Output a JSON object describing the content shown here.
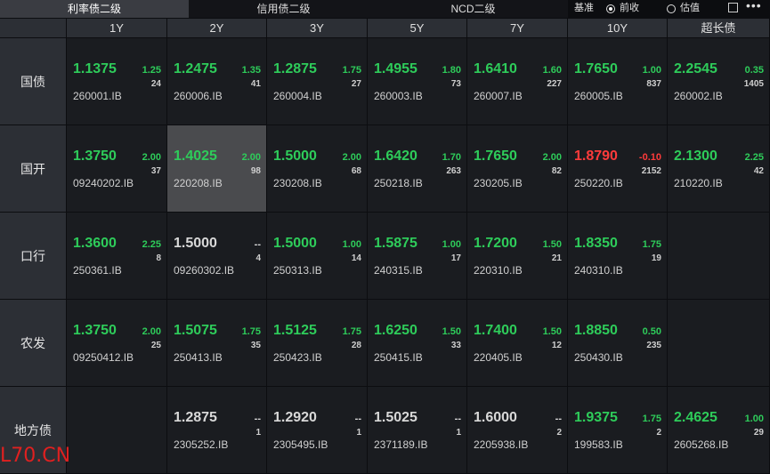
{
  "tabs": [
    "利率债二级",
    "信用债二级",
    "NCD二级"
  ],
  "active_tab": 0,
  "benchmark": {
    "label": "基准",
    "options": [
      "前收",
      "估值"
    ],
    "selected": 0
  },
  "columns": [
    "1Y",
    "2Y",
    "3Y",
    "5Y",
    "7Y",
    "10Y",
    "超长债"
  ],
  "rows": [
    {
      "name": "国债",
      "cells": [
        {
          "price": "1.1375",
          "change": "1.25",
          "count": "24",
          "code": "260001.IB"
        },
        {
          "price": "1.2475",
          "change": "1.35",
          "count": "41",
          "code": "260006.IB"
        },
        {
          "price": "1.2875",
          "change": "1.75",
          "count": "27",
          "code": "260004.IB"
        },
        {
          "price": "1.4955",
          "change": "1.80",
          "count": "73",
          "code": "260003.IB"
        },
        {
          "price": "1.6410",
          "change": "1.60",
          "count": "227",
          "code": "260007.IB"
        },
        {
          "price": "1.7650",
          "change": "1.00",
          "count": "837",
          "code": "260005.IB"
        },
        {
          "price": "2.2545",
          "change": "0.35",
          "count": "1405",
          "code": "260002.IB"
        }
      ]
    },
    {
      "name": "国开",
      "cells": [
        {
          "price": "1.3750",
          "change": "2.00",
          "count": "37",
          "code": "09240202.IB"
        },
        {
          "price": "1.4025",
          "change": "2.00",
          "count": "98",
          "code": "220208.IB",
          "selected": true
        },
        {
          "price": "1.5000",
          "change": "2.00",
          "count": "68",
          "code": "230208.IB"
        },
        {
          "price": "1.6420",
          "change": "1.70",
          "count": "263",
          "code": "250218.IB"
        },
        {
          "price": "1.7650",
          "change": "2.00",
          "count": "82",
          "code": "230205.IB"
        },
        {
          "price": "1.8790",
          "change": "-0.10",
          "count": "2152",
          "code": "250220.IB"
        },
        {
          "price": "2.1300",
          "change": "2.25",
          "count": "42",
          "code": "210220.IB"
        }
      ]
    },
    {
      "name": "口行",
      "cells": [
        {
          "price": "1.3600",
          "change": "2.25",
          "count": "8",
          "code": "250361.IB"
        },
        {
          "price": "1.5000",
          "change": "--",
          "count": "4",
          "code": "09260302.IB"
        },
        {
          "price": "1.5000",
          "change": "1.00",
          "count": "14",
          "code": "250313.IB"
        },
        {
          "price": "1.5875",
          "change": "1.00",
          "count": "17",
          "code": "240315.IB"
        },
        {
          "price": "1.7200",
          "change": "1.50",
          "count": "21",
          "code": "220310.IB"
        },
        {
          "price": "1.8350",
          "change": "1.75",
          "count": "19",
          "code": "240310.IB"
        },
        null
      ]
    },
    {
      "name": "农发",
      "cells": [
        {
          "price": "1.3750",
          "change": "2.00",
          "count": "25",
          "code": "09250412.IB"
        },
        {
          "price": "1.5075",
          "change": "1.75",
          "count": "35",
          "code": "250413.IB"
        },
        {
          "price": "1.5125",
          "change": "1.75",
          "count": "28",
          "code": "250423.IB"
        },
        {
          "price": "1.6250",
          "change": "1.50",
          "count": "33",
          "code": "250415.IB"
        },
        {
          "price": "1.7400",
          "change": "1.50",
          "count": "12",
          "code": "220405.IB"
        },
        {
          "price": "1.8850",
          "change": "0.50",
          "count": "235",
          "code": "250430.IB"
        },
        null
      ]
    },
    {
      "name": "地方债",
      "cells": [
        null,
        {
          "price": "1.2875",
          "change": "--",
          "count": "1",
          "code": "2305252.IB"
        },
        {
          "price": "1.2920",
          "change": "--",
          "count": "1",
          "code": "2305495.IB"
        },
        {
          "price": "1.5025",
          "change": "--",
          "count": "1",
          "code": "2371189.IB"
        },
        {
          "price": "1.6000",
          "change": "--",
          "count": "2",
          "code": "2205938.IB"
        },
        {
          "price": "1.9375",
          "change": "1.75",
          "count": "2",
          "code": "199583.IB"
        },
        {
          "price": "2.4625",
          "change": "1.00",
          "count": "29",
          "code": "2605268.IB"
        }
      ]
    }
  ],
  "watermark": "L70.CN"
}
